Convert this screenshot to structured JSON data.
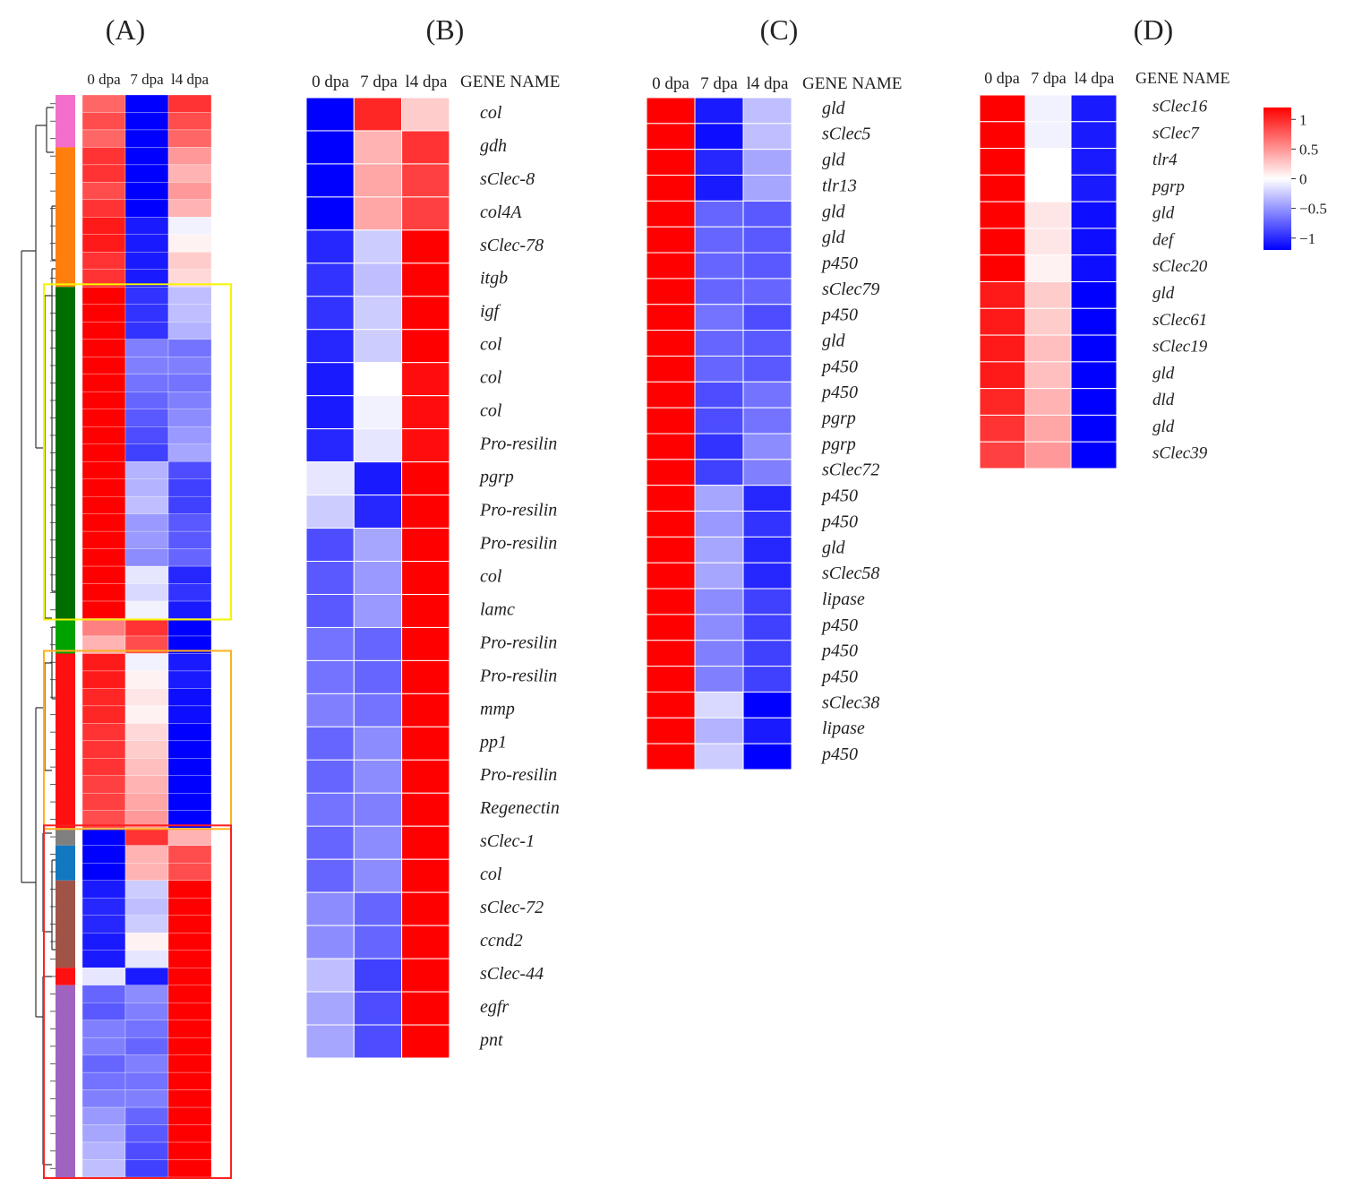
{
  "columns": [
    "0 dpa",
    "7 dpa",
    "l4 dpa"
  ],
  "gene_header": "GENE NAME",
  "colors": {
    "high": "#ff0000",
    "mid": "#ffffff",
    "low": "#0000ff"
  },
  "chart_data": [
    {
      "panel": "(A)",
      "type": "heatmap",
      "title": "(A)",
      "columns": [
        "0 dpa",
        "7 dpa",
        "l4 dpa"
      ],
      "cluster_colors": [
        {
          "color": "#f36fcb",
          "rows": 3
        },
        {
          "color": "#ff7f0e",
          "rows": 8
        },
        {
          "color": "#006e00",
          "rows": 19
        },
        {
          "color": "#00a200",
          "rows": 2
        },
        {
          "color": "#ff1010",
          "rows": 10
        },
        {
          "color": "#808080",
          "rows": 1
        },
        {
          "color": "#1278c0",
          "rows": 2
        },
        {
          "color": "#a05448",
          "rows": 5
        },
        {
          "color": "#ff1010",
          "rows": 1
        },
        {
          "color": "#a064c0",
          "rows": 11
        }
      ],
      "highlight_boxes": [
        {
          "color": "#f5f500",
          "from_row": 11,
          "to_row": 29
        },
        {
          "color": "#ffb01e",
          "from_row": 32,
          "to_row": 41
        },
        {
          "color": "#ff2020",
          "from_row": 42,
          "to_row": 61
        }
      ],
      "values": [
        [
          0.6,
          -1.0,
          0.8
        ],
        [
          0.7,
          -1.0,
          0.7
        ],
        [
          0.6,
          -1.0,
          0.6
        ],
        [
          0.8,
          -1.0,
          0.4
        ],
        [
          0.8,
          -1.0,
          0.3
        ],
        [
          0.7,
          -1.0,
          0.4
        ],
        [
          0.8,
          -1.0,
          0.3
        ],
        [
          0.9,
          -0.9,
          -0.05
        ],
        [
          0.9,
          -0.9,
          0.05
        ],
        [
          0.8,
          -0.9,
          0.2
        ],
        [
          0.8,
          -0.9,
          0.15
        ],
        [
          1.0,
          -0.8,
          -0.25
        ],
        [
          1.0,
          -0.8,
          -0.25
        ],
        [
          1.0,
          -0.8,
          -0.3
        ],
        [
          1.0,
          -0.5,
          -0.55
        ],
        [
          1.0,
          -0.5,
          -0.5
        ],
        [
          1.0,
          -0.55,
          -0.55
        ],
        [
          1.0,
          -0.6,
          -0.5
        ],
        [
          1.0,
          -0.65,
          -0.45
        ],
        [
          1.0,
          -0.7,
          -0.4
        ],
        [
          1.0,
          -0.75,
          -0.35
        ],
        [
          1.0,
          -0.3,
          -0.7
        ],
        [
          1.0,
          -0.3,
          -0.75
        ],
        [
          1.0,
          -0.25,
          -0.75
        ],
        [
          1.0,
          -0.4,
          -0.65
        ],
        [
          1.0,
          -0.4,
          -0.65
        ],
        [
          1.0,
          -0.45,
          -0.6
        ],
        [
          1.0,
          -0.1,
          -0.85
        ],
        [
          1.0,
          -0.15,
          -0.8
        ],
        [
          1.0,
          -0.05,
          -0.9
        ],
        [
          0.5,
          0.8,
          -1.0
        ],
        [
          0.3,
          0.7,
          -1.0
        ],
        [
          0.9,
          -0.05,
          -0.9
        ],
        [
          0.9,
          0.05,
          -0.9
        ],
        [
          0.85,
          0.1,
          -0.95
        ],
        [
          0.85,
          0.05,
          -0.95
        ],
        [
          0.8,
          0.15,
          -1.0
        ],
        [
          0.8,
          0.2,
          -1.0
        ],
        [
          0.8,
          0.25,
          -1.0
        ],
        [
          0.75,
          0.3,
          -1.0
        ],
        [
          0.75,
          0.35,
          -1.0
        ],
        [
          0.7,
          0.4,
          -1.0
        ],
        [
          -1.0,
          0.8,
          0.3
        ],
        [
          -1.0,
          0.3,
          0.7
        ],
        [
          -1.0,
          0.3,
          0.7
        ],
        [
          -0.9,
          -0.2,
          1.0
        ],
        [
          -0.85,
          -0.25,
          1.0
        ],
        [
          -0.85,
          -0.2,
          1.0
        ],
        [
          -0.9,
          0.05,
          1.0
        ],
        [
          -0.9,
          -0.1,
          1.0
        ],
        [
          -0.1,
          -0.9,
          1.0
        ],
        [
          -0.6,
          -0.45,
          1.0
        ],
        [
          -0.65,
          -0.5,
          1.0
        ],
        [
          -0.5,
          -0.55,
          1.0
        ],
        [
          -0.5,
          -0.6,
          1.0
        ],
        [
          -0.6,
          -0.5,
          1.0
        ],
        [
          -0.55,
          -0.55,
          1.0
        ],
        [
          -0.5,
          -0.5,
          1.0
        ],
        [
          -0.4,
          -0.6,
          1.0
        ],
        [
          -0.35,
          -0.65,
          1.0
        ],
        [
          -0.3,
          -0.7,
          1.0
        ],
        [
          -0.25,
          -0.75,
          1.0
        ]
      ]
    },
    {
      "panel": "(B)",
      "type": "heatmap",
      "title": "(B)",
      "columns": [
        "0 dpa",
        "7 dpa",
        "l4 dpa"
      ],
      "rows": [
        "col",
        "gdh",
        "sClec-8",
        "col4A",
        "sClec-78",
        "itgb",
        "igf",
        "col",
        "col",
        "col",
        "Pro-resilin",
        "pgrp",
        "Pro-resilin",
        "Pro-resilin",
        "col",
        "lamc",
        "Pro-resilin",
        "Pro-resilin",
        "mmp",
        "pp1",
        "Pro-resilin",
        "Regenectin",
        "sClec-1",
        "col",
        "sClec-72",
        "ccnd2",
        "sClec-44",
        "egfr",
        "pnt"
      ],
      "values": [
        [
          -1.0,
          0.85,
          0.2
        ],
        [
          -1.0,
          0.3,
          0.8
        ],
        [
          -1.0,
          0.35,
          0.75
        ],
        [
          -1.0,
          0.35,
          0.75
        ],
        [
          -0.85,
          -0.2,
          1.0
        ],
        [
          -0.8,
          -0.25,
          1.0
        ],
        [
          -0.8,
          -0.2,
          1.0
        ],
        [
          -0.85,
          -0.2,
          1.0
        ],
        [
          -0.9,
          0.0,
          0.95
        ],
        [
          -0.9,
          -0.05,
          0.95
        ],
        [
          -0.85,
          -0.1,
          0.95
        ],
        [
          -0.1,
          -0.9,
          1.0
        ],
        [
          -0.2,
          -0.85,
          1.0
        ],
        [
          -0.7,
          -0.35,
          1.0
        ],
        [
          -0.65,
          -0.4,
          1.0
        ],
        [
          -0.65,
          -0.4,
          1.0
        ],
        [
          -0.55,
          -0.6,
          1.0
        ],
        [
          -0.55,
          -0.6,
          1.0
        ],
        [
          -0.5,
          -0.55,
          1.0
        ],
        [
          -0.6,
          -0.45,
          1.0
        ],
        [
          -0.6,
          -0.45,
          1.0
        ],
        [
          -0.55,
          -0.5,
          1.0
        ],
        [
          -0.6,
          -0.45,
          1.0
        ],
        [
          -0.6,
          -0.45,
          1.0
        ],
        [
          -0.45,
          -0.6,
          1.0
        ],
        [
          -0.45,
          -0.6,
          1.0
        ],
        [
          -0.25,
          -0.75,
          1.0
        ],
        [
          -0.35,
          -0.7,
          1.0
        ],
        [
          -0.35,
          -0.7,
          1.0
        ]
      ]
    },
    {
      "panel": "(C)",
      "type": "heatmap",
      "title": "(C)",
      "columns": [
        "0 dpa",
        "7 dpa",
        "l4 dpa"
      ],
      "rows": [
        "gld",
        "sClec5",
        "gld",
        "tlr13",
        "gld",
        "gld",
        "p450",
        "sClec79",
        "p450",
        "gld",
        "p450",
        "p450",
        "pgrp",
        "pgrp",
        "sClec72",
        "p450",
        "p450",
        "gld",
        "sClec58",
        "lipase",
        "p450",
        "p450",
        "p450",
        "sClec38",
        "lipase",
        "p450"
      ],
      "values": [
        [
          1.0,
          -0.9,
          -0.25
        ],
        [
          1.0,
          -0.95,
          -0.25
        ],
        [
          1.0,
          -0.85,
          -0.35
        ],
        [
          1.0,
          -0.9,
          -0.35
        ],
        [
          1.0,
          -0.6,
          -0.65
        ],
        [
          1.0,
          -0.6,
          -0.65
        ],
        [
          1.0,
          -0.6,
          -0.65
        ],
        [
          1.0,
          -0.6,
          -0.6
        ],
        [
          1.0,
          -0.55,
          -0.7
        ],
        [
          1.0,
          -0.6,
          -0.65
        ],
        [
          1.0,
          -0.6,
          -0.65
        ],
        [
          1.0,
          -0.7,
          -0.55
        ],
        [
          1.0,
          -0.7,
          -0.55
        ],
        [
          1.0,
          -0.8,
          -0.45
        ],
        [
          1.0,
          -0.75,
          -0.5
        ],
        [
          1.0,
          -0.35,
          -0.85
        ],
        [
          1.0,
          -0.4,
          -0.8
        ],
        [
          1.0,
          -0.35,
          -0.85
        ],
        [
          1.0,
          -0.35,
          -0.85
        ],
        [
          1.0,
          -0.45,
          -0.75
        ],
        [
          1.0,
          -0.45,
          -0.75
        ],
        [
          1.0,
          -0.5,
          -0.75
        ],
        [
          1.0,
          -0.5,
          -0.75
        ],
        [
          1.0,
          -0.15,
          -1.0
        ],
        [
          1.0,
          -0.3,
          -0.9
        ],
        [
          1.0,
          -0.2,
          -1.0
        ]
      ]
    },
    {
      "panel": "(D)",
      "type": "heatmap",
      "title": "(D)",
      "columns": [
        "0 dpa",
        "7 dpa",
        "l4 dpa"
      ],
      "rows": [
        "sClec16",
        "sClec7",
        "tlr4",
        "pgrp",
        "gld",
        "def",
        "sClec20",
        "gld",
        "sClec61",
        "sClec19",
        "gld",
        "dld",
        "gld",
        "sClec39"
      ],
      "values": [
        [
          1.0,
          -0.05,
          -0.9
        ],
        [
          1.0,
          -0.05,
          -0.9
        ],
        [
          1.0,
          0.0,
          -0.9
        ],
        [
          1.0,
          0.0,
          -0.9
        ],
        [
          1.0,
          0.1,
          -0.95
        ],
        [
          1.0,
          0.1,
          -0.95
        ],
        [
          1.0,
          0.05,
          -0.95
        ],
        [
          0.9,
          0.2,
          -1.0
        ],
        [
          0.9,
          0.2,
          -1.0
        ],
        [
          0.9,
          0.25,
          -1.0
        ],
        [
          0.9,
          0.25,
          -1.0
        ],
        [
          0.85,
          0.3,
          -1.0
        ],
        [
          0.8,
          0.35,
          -1.0
        ],
        [
          0.75,
          0.4,
          -1.0
        ]
      ]
    }
  ],
  "legend": {
    "ticks": [
      {
        "value": 1,
        "label": "1"
      },
      {
        "value": 0.5,
        "label": "0.5"
      },
      {
        "value": 0,
        "label": "0"
      },
      {
        "value": -0.5,
        "label": "−0.5"
      },
      {
        "value": -1,
        "label": "−1"
      }
    ],
    "range": [
      -1.2,
      1.2
    ]
  }
}
